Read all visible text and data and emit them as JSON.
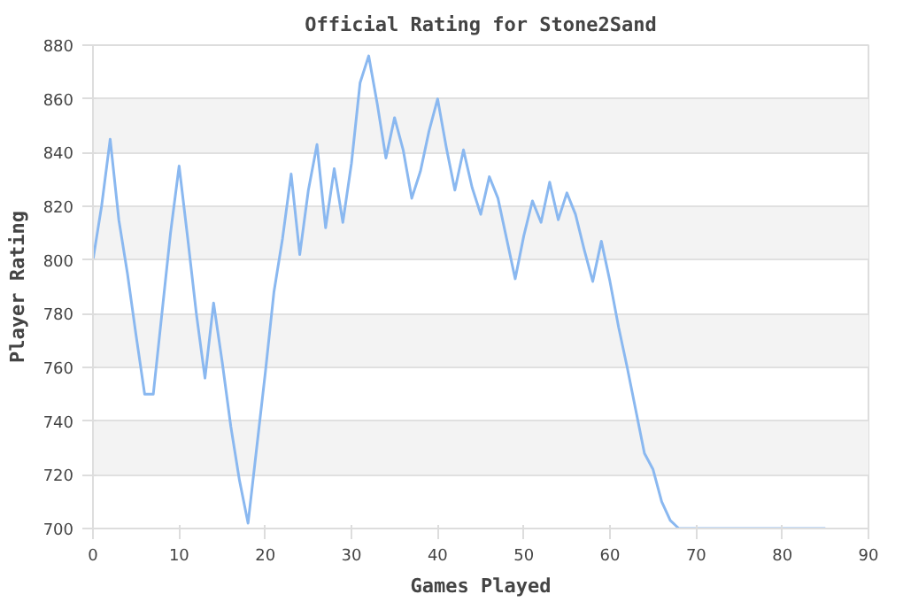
{
  "chart_data": {
    "type": "line",
    "title": "Official Rating for Stone2Sand",
    "xlabel": "Games Played",
    "ylabel": "Player Rating",
    "x": [
      0,
      1,
      2,
      3,
      4,
      5,
      6,
      7,
      8,
      9,
      10,
      11,
      12,
      13,
      14,
      15,
      16,
      17,
      18,
      19,
      20,
      21,
      22,
      23,
      24,
      25,
      26,
      27,
      28,
      29,
      30,
      31,
      32,
      33,
      34,
      35,
      36,
      37,
      38,
      39,
      40,
      41,
      42,
      43,
      44,
      45,
      46,
      47,
      48,
      49,
      50,
      51,
      52,
      53,
      54,
      55,
      56,
      57,
      58,
      59,
      60,
      61,
      62,
      63,
      64,
      65,
      66,
      67,
      68,
      69,
      70,
      71,
      72,
      73,
      74,
      75,
      76,
      77,
      78,
      79,
      80,
      81,
      82,
      83,
      84,
      85
    ],
    "series": [
      {
        "color": "#8ab8f0",
        "values": [
          800,
          820,
          845,
          815,
          795,
          772,
          750,
          750,
          780,
          810,
          835,
          808,
          780,
          756,
          784,
          762,
          738,
          718,
          702,
          730,
          758,
          788,
          808,
          832,
          802,
          826,
          843,
          812,
          834,
          814,
          836,
          866,
          876,
          858,
          838,
          853,
          841,
          823,
          833,
          848,
          860,
          842,
          826,
          841,
          827,
          817,
          831,
          823,
          808,
          793,
          809,
          822,
          814,
          829,
          815,
          825,
          817,
          804,
          792,
          807,
          792,
          775,
          760,
          744,
          728,
          722,
          710,
          703,
          700,
          700,
          700,
          700,
          700,
          700,
          700,
          700,
          700,
          700,
          700,
          700,
          700,
          700,
          700,
          700,
          700,
          700
        ]
      }
    ],
    "xlim": [
      0,
      90
    ],
    "ylim": [
      700,
      880
    ],
    "xticks": [
      0,
      10,
      20,
      30,
      40,
      50,
      60,
      70,
      80,
      90
    ],
    "yticks": [
      700,
      720,
      740,
      760,
      780,
      800,
      820,
      840,
      860,
      880
    ],
    "grid": "y",
    "marker": "none",
    "line_style": "solid"
  }
}
